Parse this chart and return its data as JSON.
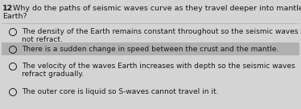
{
  "question_number": "12",
  "question_line1": " Why do the paths of seismic waves curve as they travel deeper into mantle of the",
  "question_line2": "Earth?",
  "options": [
    [
      "The density of the Earth remains constant throughout so the seismic waves do",
      "not refract."
    ],
    [
      "There is a sudden change in speed between the crust and the mantle."
    ],
    [
      "The velocity of the waves Earth increases with depth so the seismic waves",
      "refract gradually."
    ],
    [
      "The outer core is liquid so S-waves cannot travel in it."
    ]
  ],
  "highlighted_index": 1,
  "bg_color": "#d4d4d4",
  "highlight_color": "#b0b0b0",
  "text_color": "#1a1a1a",
  "fig_width": 3.74,
  "fig_height": 1.36,
  "dpi": 100
}
